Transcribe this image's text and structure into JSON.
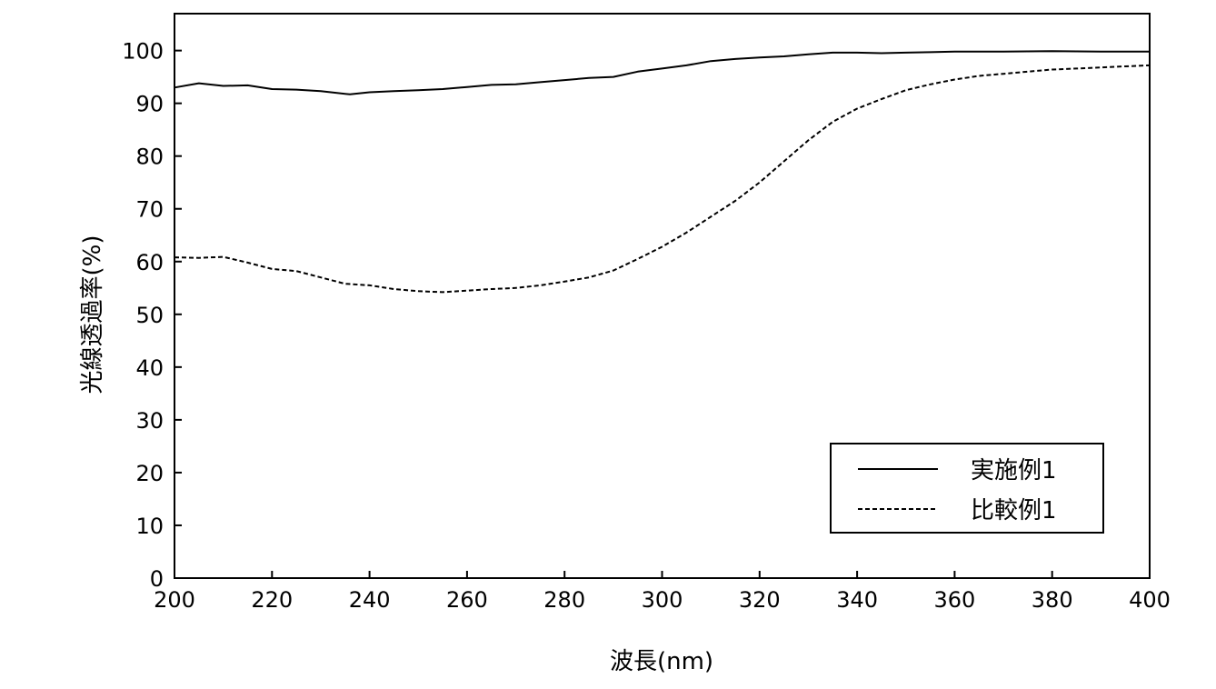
{
  "chart_data": {
    "type": "line",
    "title": "",
    "xlabel": "波長(nm)",
    "ylabel": "光線透過率(%)",
    "xlim": [
      200,
      400
    ],
    "ylim": [
      0,
      107
    ],
    "x_ticks": [
      200,
      220,
      240,
      260,
      280,
      300,
      320,
      340,
      360,
      380,
      400
    ],
    "y_ticks": [
      0,
      10,
      20,
      30,
      40,
      50,
      60,
      70,
      80,
      90,
      100
    ],
    "x_tick_labels": [
      "200",
      "220",
      "240",
      "260",
      "280",
      "300",
      "320",
      "340",
      "360",
      "380",
      "400"
    ],
    "y_tick_labels": [
      "0",
      "10",
      "20",
      "30",
      "40",
      "50",
      "60",
      "70",
      "80",
      "90",
      "100"
    ],
    "grid": false,
    "legend_position": "bottom-right",
    "series": [
      {
        "name": "実施例1",
        "line_style": "solid",
        "color": "#000000",
        "x": [
          200,
          205,
          210,
          215,
          220,
          225,
          230,
          236,
          240,
          245,
          250,
          255,
          260,
          265,
          270,
          275,
          280,
          285,
          290,
          295,
          300,
          305,
          310,
          315,
          320,
          325,
          330,
          335,
          340,
          345,
          350,
          355,
          360,
          370,
          380,
          390,
          400
        ],
        "y": [
          93.0,
          93.8,
          93.3,
          93.4,
          92.7,
          92.6,
          92.3,
          91.7,
          92.1,
          92.3,
          92.5,
          92.7,
          93.1,
          93.5,
          93.6,
          94.0,
          94.4,
          94.8,
          95.0,
          96.0,
          96.6,
          97.2,
          98.0,
          98.4,
          98.7,
          98.9,
          99.3,
          99.6,
          99.6,
          99.5,
          99.6,
          99.7,
          99.8,
          99.8,
          99.9,
          99.8,
          99.8
        ]
      },
      {
        "name": "比較例1",
        "line_style": "dashed",
        "color": "#000000",
        "x": [
          200,
          205,
          210,
          215,
          220,
          225,
          230,
          235,
          240,
          245,
          250,
          255,
          260,
          265,
          270,
          275,
          280,
          285,
          290,
          295,
          300,
          305,
          310,
          315,
          320,
          325,
          330,
          335,
          340,
          345,
          350,
          355,
          360,
          365,
          370,
          375,
          380,
          385,
          390,
          395,
          400
        ],
        "y": [
          60.8,
          60.7,
          60.9,
          59.8,
          58.6,
          58.2,
          57.0,
          55.8,
          55.5,
          54.8,
          54.4,
          54.2,
          54.5,
          54.8,
          55.0,
          55.5,
          56.2,
          57.0,
          58.3,
          60.5,
          62.8,
          65.5,
          68.5,
          71.5,
          75.0,
          79.0,
          83.0,
          86.5,
          89.0,
          90.8,
          92.5,
          93.6,
          94.5,
          95.2,
          95.6,
          96.0,
          96.4,
          96.6,
          96.8,
          97.0,
          97.2
        ]
      }
    ]
  }
}
